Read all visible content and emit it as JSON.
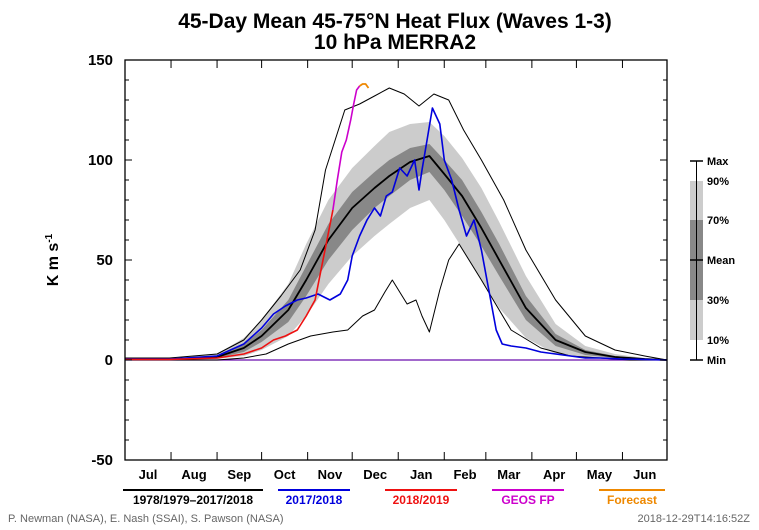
{
  "chart_data": {
    "type": "line",
    "title": "45-Day Mean 45-75°N Heat Flux (Waves 1-3)",
    "subtitle": "10 hPa    MERRA2",
    "ylabel": "K m s",
    "ylabel_exp": "-1",
    "ylim": [
      -50,
      150
    ],
    "yticks": [
      -50,
      0,
      50,
      100,
      150
    ],
    "xlim": [
      0,
      365
    ],
    "months": [
      "Jul",
      "Aug",
      "Sep",
      "Oct",
      "Nov",
      "Dec",
      "Jan",
      "Feb",
      "Mar",
      "Apr",
      "May",
      "Jun"
    ],
    "percentile_scale": [
      "Max",
      "90%",
      "70%",
      "Mean",
      "30%",
      "10%",
      "Min"
    ],
    "colors": {
      "band_outer": "#cccccc",
      "band_inner": "#888888",
      "climatology": "#000000",
      "y2017": "#0000dd",
      "y2018": "#ee1111",
      "geos_fp": "#cc00cc",
      "forecast": "#ee8800",
      "zero_line": "#6a0dad"
    },
    "legend": [
      {
        "label": "1978/1979–2017/2018",
        "color": "#000000"
      },
      {
        "label": "2017/2018",
        "color": "#0000dd"
      },
      {
        "label": "2018/2019",
        "color": "#ee1111"
      },
      {
        "label": "GEOS FP",
        "color": "#cc00cc"
      },
      {
        "label": "Forecast",
        "color": "#ee8800"
      }
    ],
    "series": {
      "mean": {
        "x": [
          0,
          30,
          62,
          80,
          92,
          110,
          122,
          137,
          153,
          168,
          178,
          192,
          205,
          215,
          227,
          240,
          252,
          270,
          290,
          310,
          330,
          350,
          365
        ],
        "y": [
          0.5,
          0.3,
          1.5,
          6,
          12,
          25,
          40,
          60,
          76,
          86,
          92,
          99,
          102,
          93,
          82,
          66,
          50,
          26,
          10,
          4,
          1.5,
          0.5,
          0
        ]
      },
      "max": {
        "x": [
          0,
          30,
          62,
          80,
          92,
          105,
          118,
          128,
          135,
          148,
          158,
          168,
          178,
          188,
          198,
          208,
          218,
          228,
          240,
          255,
          270,
          290,
          310,
          330,
          350,
          365
        ],
        "y": [
          1,
          1,
          3,
          10,
          20,
          32,
          45,
          65,
          95,
          125,
          128,
          132,
          136,
          133,
          127,
          133,
          130,
          115,
          100,
          80,
          55,
          30,
          12,
          5,
          2,
          0
        ]
      },
      "min": {
        "x": [
          0,
          30,
          62,
          80,
          95,
          110,
          125,
          140,
          150,
          160,
          168,
          175,
          180,
          190,
          196,
          200,
          205,
          212,
          218,
          225,
          240,
          260,
          280,
          300,
          320,
          340,
          365
        ],
        "y": [
          0,
          0,
          0,
          1,
          3,
          8,
          12,
          14,
          15,
          22,
          25,
          34,
          40,
          28,
          30,
          22,
          14,
          35,
          50,
          58,
          40,
          15,
          6,
          2,
          1,
          0,
          0
        ]
      },
      "p90": {
        "x": [
          0,
          30,
          62,
          80,
          92,
          110,
          122,
          137,
          153,
          168,
          178,
          192,
          205,
          215,
          227,
          240,
          252,
          270,
          290,
          310,
          330,
          350,
          365
        ],
        "y": [
          1,
          0.8,
          3,
          11,
          20,
          38,
          58,
          80,
          96,
          107,
          114,
          118,
          119,
          112,
          101,
          86,
          69,
          42,
          18,
          7,
          3,
          1,
          0
        ]
      },
      "p70": {
        "x": [
          0,
          30,
          62,
          80,
          92,
          110,
          122,
          137,
          153,
          168,
          178,
          192,
          205,
          215,
          227,
          240,
          252,
          270,
          290,
          310,
          330,
          350,
          365
        ],
        "y": [
          0.7,
          0.5,
          2,
          8,
          15,
          30,
          47,
          68,
          84,
          94,
          100,
          106,
          108,
          100,
          90,
          74,
          58,
          32,
          13,
          5,
          2,
          0.7,
          0
        ]
      },
      "p30": {
        "x": [
          0,
          30,
          62,
          80,
          92,
          110,
          122,
          137,
          153,
          168,
          178,
          192,
          205,
          215,
          227,
          240,
          252,
          270,
          290,
          310,
          330,
          350,
          365
        ],
        "y": [
          0.3,
          0.2,
          1,
          4,
          9,
          19,
          32,
          50,
          65,
          76,
          82,
          90,
          94,
          85,
          72,
          57,
          42,
          20,
          7,
          2.5,
          1,
          0.3,
          0
        ]
      },
      "p10": {
        "x": [
          0,
          30,
          62,
          80,
          92,
          110,
          122,
          137,
          153,
          168,
          178,
          192,
          205,
          215,
          227,
          240,
          252,
          270,
          290,
          310,
          330,
          350,
          365
        ],
        "y": [
          0.1,
          0.1,
          0.5,
          2,
          5,
          12,
          22,
          38,
          52,
          62,
          68,
          76,
          80,
          70,
          56,
          40,
          26,
          11,
          3,
          1,
          0.4,
          0.1,
          0
        ]
      },
      "y2017": {
        "x": [
          0,
          30,
          62,
          80,
          92,
          100,
          108,
          116,
          122,
          130,
          138,
          145,
          150,
          153,
          158,
          163,
          168,
          172,
          176,
          180,
          185,
          190,
          195,
          198,
          200,
          203,
          207,
          212,
          215,
          220,
          225,
          230,
          235,
          240,
          245,
          250,
          254,
          260,
          270,
          280,
          290,
          300,
          310,
          320,
          335,
          350,
          365
        ],
        "y": [
          0.5,
          0.5,
          2,
          8,
          16,
          23,
          27,
          30,
          31,
          33,
          30,
          33,
          40,
          52,
          62,
          70,
          76,
          72,
          82,
          84,
          96,
          92,
          100,
          85,
          95,
          108,
          126,
          118,
          100,
          90,
          75,
          62,
          70,
          55,
          35,
          15,
          8,
          7,
          6,
          4,
          3,
          2,
          1,
          1,
          0.5,
          0.3,
          0
        ]
      },
      "y2018": {
        "x": [
          0,
          30,
          62,
          80,
          92,
          100,
          108,
          116,
          122,
          128,
          132,
          136,
          140
        ],
        "y": [
          0.3,
          0.3,
          1,
          3,
          6,
          10,
          12,
          15,
          22,
          30,
          45,
          60,
          75
        ]
      },
      "geos_fp": {
        "x": [
          140,
          143,
          146,
          149,
          152,
          154,
          156,
          158
        ],
        "y": [
          75,
          90,
          104,
          110,
          120,
          128,
          135,
          137
        ]
      },
      "forecast": {
        "x": [
          158,
          160,
          162,
          164
        ],
        "y": [
          137,
          138,
          138,
          136
        ]
      }
    }
  },
  "credits": {
    "left": "P. Newman (NASA), E. Nash (SSAI), S. Pawson (NASA)",
    "right": "2018-12-29T14:16:52Z"
  }
}
